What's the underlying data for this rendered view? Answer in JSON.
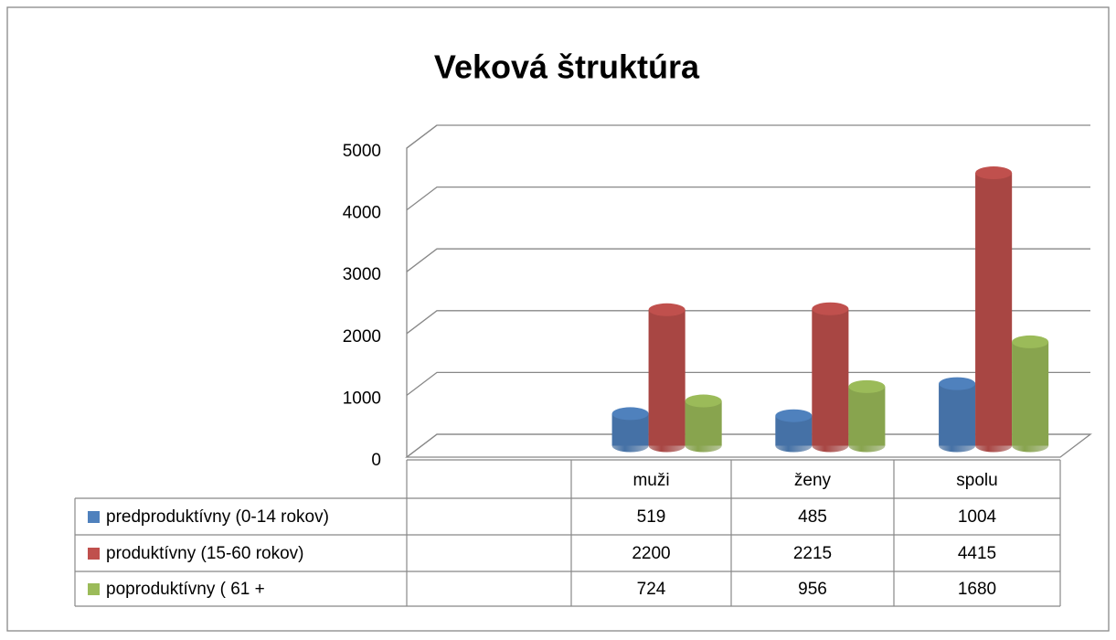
{
  "chart_data": {
    "type": "bar3d",
    "title": "Veková štruktúra",
    "categories": [
      null,
      "muži",
      "ženy",
      "spolu"
    ],
    "series": [
      {
        "name": "predproduktívny (0-14 rokov)",
        "color": "#4f81bd",
        "values": [
          null,
          519,
          485,
          1004
        ]
      },
      {
        "name": "produktívny (15-60 rokov)",
        "color": "#c0504d",
        "values": [
          null,
          2200,
          2215,
          4415
        ]
      },
      {
        "name": "poproduktívny ( 61 +",
        "color": "#9bbb59",
        "values": [
          null,
          724,
          956,
          1680
        ]
      }
    ],
    "ylim": [
      0,
      5000
    ],
    "yticks": [
      0,
      1000,
      2000,
      3000,
      4000,
      5000
    ],
    "grid": true
  }
}
